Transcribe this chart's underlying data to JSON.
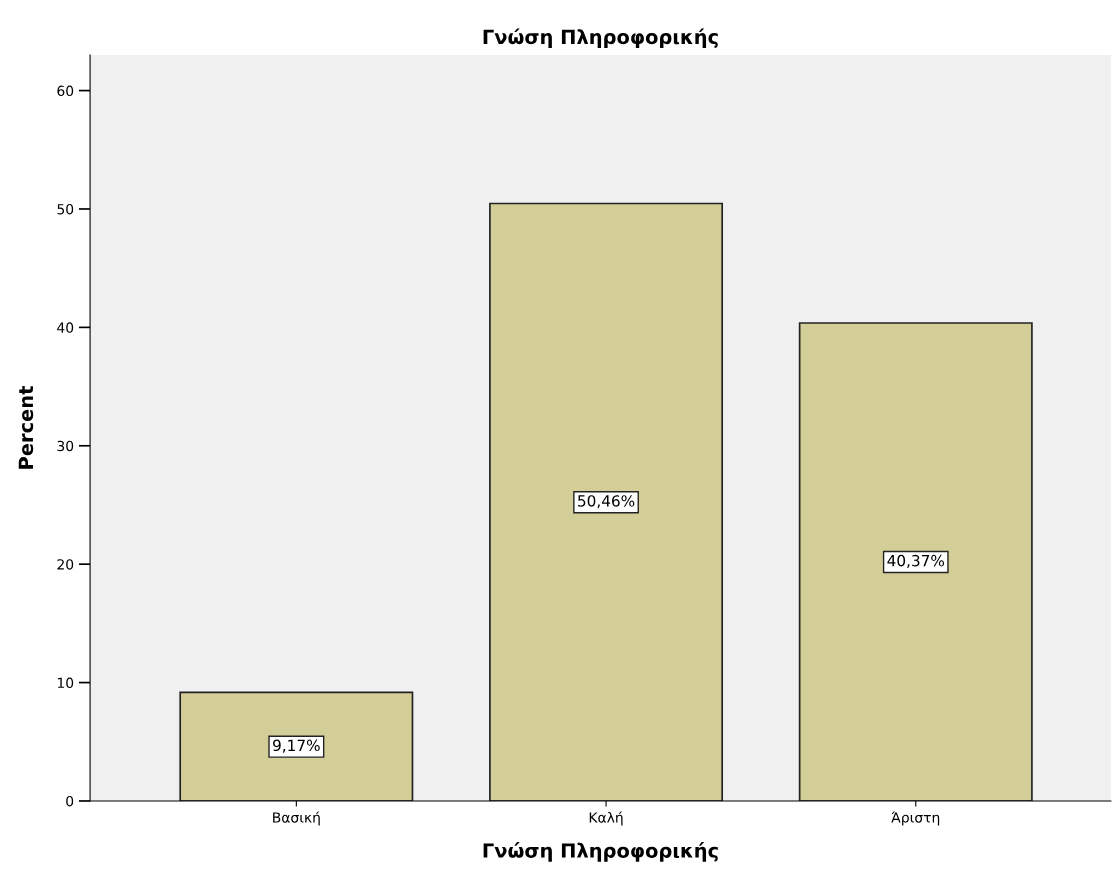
{
  "chart_data": {
    "type": "bar",
    "title": "Γνώση Πληροφορικής",
    "xlabel": "Γνώση Πληροφορικής",
    "ylabel": "Percent",
    "categories": [
      "Βασική",
      "Καλή",
      "Άριστη"
    ],
    "values": [
      9.17,
      50.46,
      40.37
    ],
    "value_labels": [
      "9,17%",
      "50,46%",
      "40,37%"
    ],
    "color": "#d3ce97",
    "ylim": [
      0,
      63
    ],
    "yticks": [
      0,
      10,
      20,
      30,
      40,
      50,
      60
    ],
    "grid": false,
    "legend": false
  }
}
